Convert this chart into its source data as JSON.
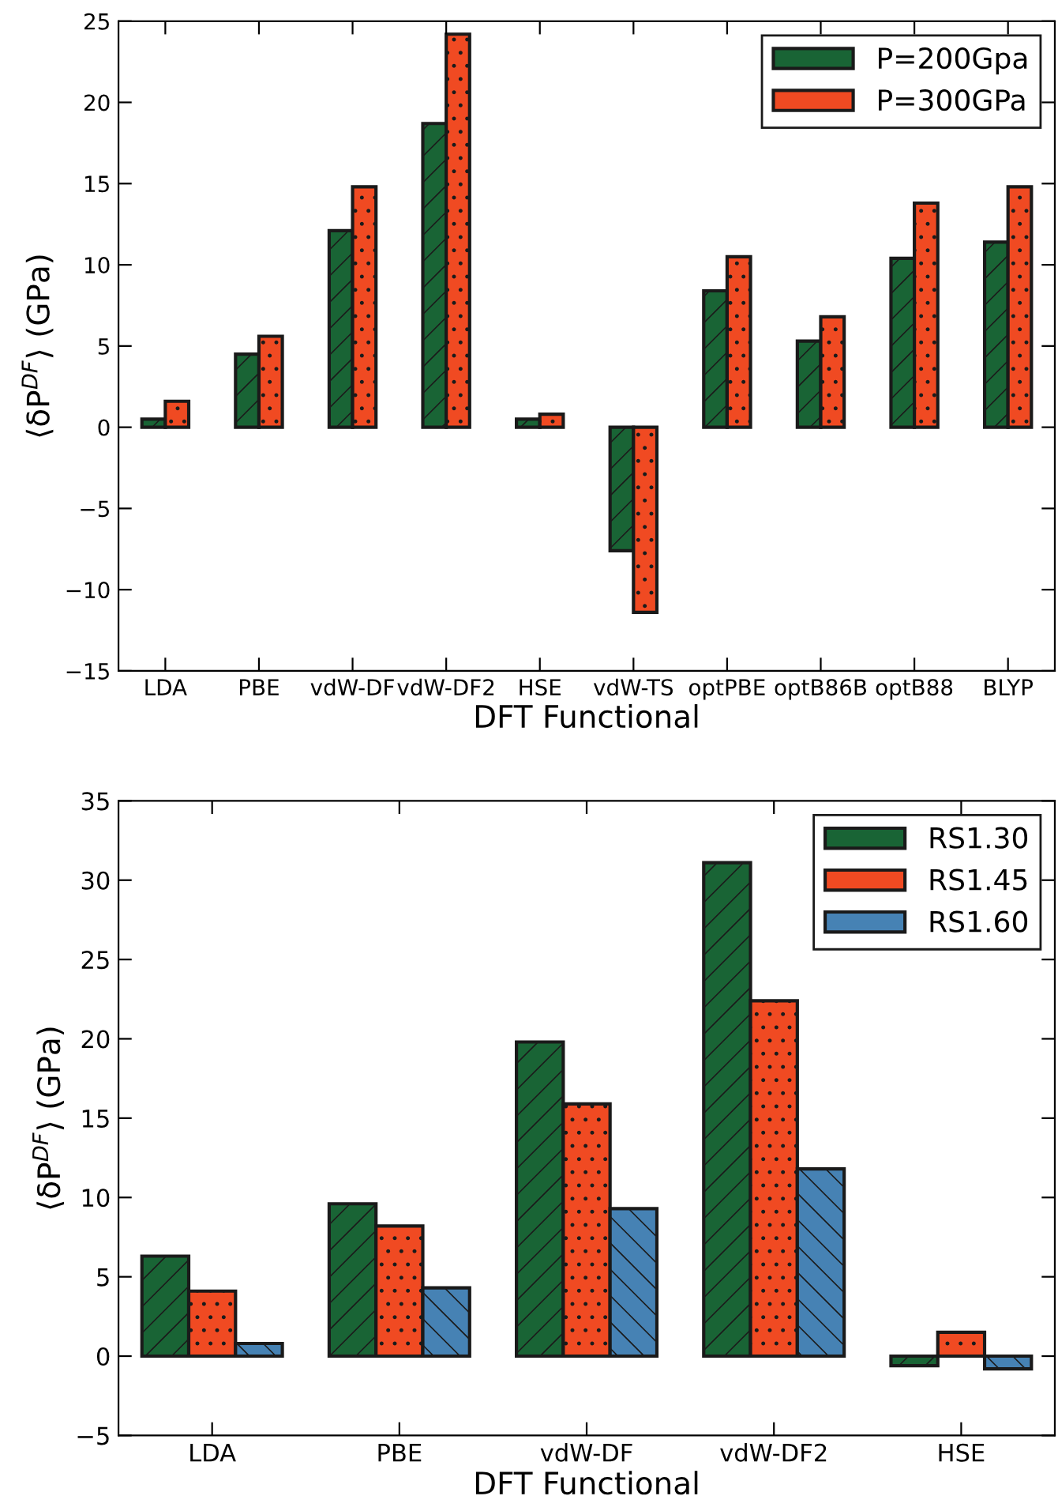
{
  "chart_data": [
    {
      "type": "bar",
      "xlabel": "DFT Functional",
      "ylabel": "⟨δP$^{DF}$⟩ (GPa)",
      "categories": [
        "LDA",
        "PBE",
        "vdW-DF",
        "vdW-DF2",
        "HSE",
        "vdW-TS",
        "optPBE",
        "optB86B",
        "optB88",
        "BLYP"
      ],
      "series": [
        {
          "name": "P=200Gpa",
          "color": "#196435",
          "values": [
            0.5,
            4.5,
            12.1,
            18.7,
            0.5,
            -7.6,
            8.4,
            5.3,
            10.4,
            11.4
          ]
        },
        {
          "name": "P=300GPa",
          "color": "#f04a22",
          "values": [
            1.6,
            5.6,
            14.8,
            24.2,
            0.8,
            -11.4,
            10.5,
            6.8,
            13.8,
            14.8
          ]
        }
      ],
      "ylim": [
        -15,
        25
      ],
      "yticks": [
        {
          "value": -15,
          "label": "−15"
        },
        {
          "value": -10,
          "label": "−10"
        },
        {
          "value": -5,
          "label": "−5"
        },
        0,
        5,
        10,
        15,
        20,
        25
      ],
      "legend": "top right",
      "grid": false
    },
    {
      "type": "bar",
      "xlabel": "DFT Functional",
      "ylabel": "⟨δP$^{DF}$⟩ (GPa)",
      "categories": [
        "LDA",
        "PBE",
        "vdW-DF",
        "vdW-DF2",
        "HSE"
      ],
      "series": [
        {
          "name": "RS1.30",
          "color": "#196435",
          "values": [
            6.3,
            9.6,
            19.8,
            31.1,
            -0.6
          ]
        },
        {
          "name": "RS1.45",
          "color": "#f04a22",
          "values": [
            4.1,
            8.2,
            15.9,
            22.4,
            1.5
          ]
        },
        {
          "name": "RS1.60",
          "color": "#4682b4",
          "values": [
            0.8,
            4.3,
            9.3,
            11.8,
            -0.8
          ]
        }
      ],
      "ylim": [
        -5,
        35
      ],
      "yticks": [
        {
          "value": -5,
          "label": "−5"
        },
        0,
        5,
        10,
        15,
        20,
        25,
        30,
        35
      ],
      "legend": "top right",
      "grid": false
    }
  ]
}
